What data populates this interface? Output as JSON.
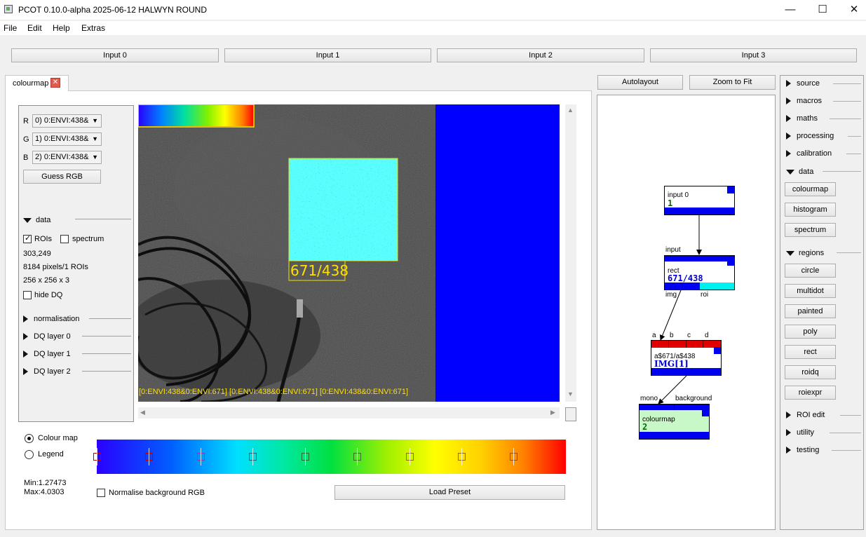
{
  "window": {
    "title": "PCOT 0.10.0-alpha 2025-06-12 HALWYN ROUND",
    "minimize": "—",
    "maximize": "☐",
    "close": "✕"
  },
  "menu": [
    "File",
    "Edit",
    "Help",
    "Extras"
  ],
  "inputs": [
    "Input 0",
    "Input 1",
    "Input 2",
    "Input 3"
  ],
  "tab": {
    "label": "colourmap",
    "close": "✕"
  },
  "channels": [
    {
      "label": "R",
      "value": "0) 0:ENVI:438&"
    },
    {
      "label": "G",
      "value": "1) 0:ENVI:438&"
    },
    {
      "label": "B",
      "value": "2) 0:ENVI:438&"
    }
  ],
  "guess_rgb": "Guess RGB",
  "data_section": {
    "header": "data",
    "rois_label": "ROIs",
    "rois_checked": true,
    "spectrum_label": "spectrum",
    "spectrum_checked": false,
    "coords": "303,249",
    "pixels": "8184 pixels/1 ROIs",
    "size": "256 x 256 x 3",
    "hide_dq_label": "hide DQ",
    "hide_dq_checked": false
  },
  "collapsed_sections": [
    "normalisation",
    "DQ layer 0",
    "DQ layer 1",
    "DQ layer 2"
  ],
  "canvas": {
    "roi_label": "671/438",
    "bottom_caption": "[0:ENVI:438&0:ENVI:671] [0:ENVI:438&0:ENVI:671] [0:ENVI:438&0:ENVI:671]"
  },
  "colourmap_panel": {
    "mode_colour_map": "Colour map",
    "mode_legend": "Legend",
    "selected_mode": "Colour map",
    "min": "Min:1.27473",
    "max": "Max:4.0303",
    "normalise_label": "Normalise background RGB",
    "normalise_checked": false,
    "load_preset": "Load Preset"
  },
  "graph": {
    "autolayout": "Autolayout",
    "zoom_to_fit": "Zoom to Fit",
    "nodes": {
      "input0": {
        "title": "input 0",
        "sub": "1",
        "out_label": "input"
      },
      "rect": {
        "title": "rect",
        "sub": "671/438",
        "out_labels": [
          "img",
          "roi"
        ]
      },
      "expr": {
        "title": "a$671/a$438",
        "sub": "IMG[1]",
        "in_labels": [
          "a",
          "b",
          "c",
          "d"
        ]
      },
      "colourmap": {
        "title": "colourmap",
        "sub": "2",
        "in_labels": [
          "mono",
          "background"
        ]
      }
    }
  },
  "palette": {
    "sections": [
      {
        "label": "source",
        "expanded": false,
        "items": []
      },
      {
        "label": "macros",
        "expanded": false,
        "items": []
      },
      {
        "label": "maths",
        "expanded": false,
        "items": []
      },
      {
        "label": "processing",
        "expanded": false,
        "items": []
      },
      {
        "label": "calibration",
        "expanded": false,
        "items": []
      },
      {
        "label": "data",
        "expanded": true,
        "items": [
          "colourmap",
          "histogram",
          "spectrum"
        ]
      },
      {
        "label": "regions",
        "expanded": true,
        "items": [
          "circle",
          "multidot",
          "painted",
          "poly",
          "rect",
          "roidq",
          "roiexpr"
        ]
      },
      {
        "label": "ROI edit",
        "expanded": false,
        "items": []
      },
      {
        "label": "utility",
        "expanded": false,
        "items": []
      },
      {
        "label": "testing",
        "expanded": false,
        "items": []
      }
    ]
  },
  "colors": {
    "node_blue": "#0000f0",
    "node_red": "#e00000",
    "node_cyan": "#00f0f0",
    "node_green_bg": "#c8f8c8",
    "caption_yellow": "#ffe000",
    "selected_roi_border": "#f0e000",
    "canvas_blue": "#0000ff"
  }
}
